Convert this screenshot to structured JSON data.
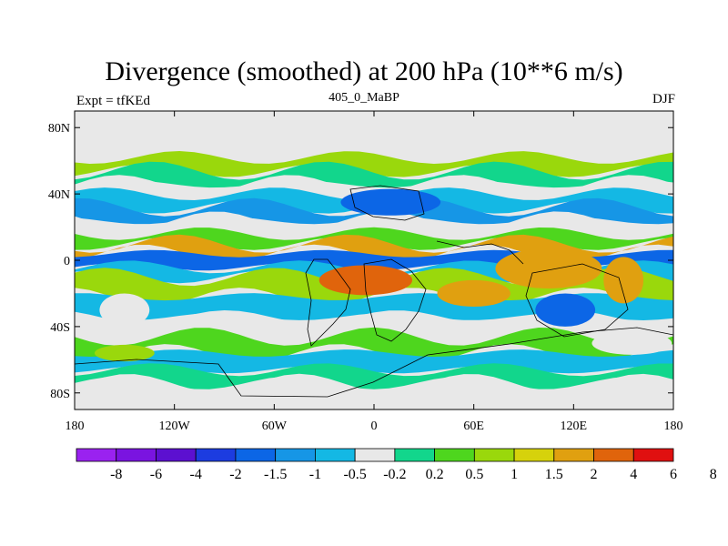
{
  "title": "Divergence (smoothed) at 200 hPa (10**6 m/s)",
  "subtitle": "405_0_MaBP",
  "left_label": "Expt = tfKEd",
  "right_label": "DJF",
  "colors": {
    "background": "#ffffff",
    "map_fill_neutral": "#e8e8e8",
    "coastline": "#000000",
    "levels": [
      "#9a22f0",
      "#7a14e0",
      "#5c10d0",
      "#1c3ce0",
      "#0c66e6",
      "#1696e6",
      "#14b8e4",
      "#e8e8e8",
      "#12d68c",
      "#4ed61e",
      "#9ad80c",
      "#d6d20c",
      "#e0a010",
      "#e0640c",
      "#e01010"
    ]
  },
  "chart_data": {
    "type": "heatmap",
    "title": "Divergence (smoothed) at 200 hPa (10**6 m/s)",
    "subtitle": "405_0_MaBP",
    "xlabel": "",
    "ylabel": "",
    "x_ticks": [
      "180",
      "120W",
      "60W",
      "0",
      "60E",
      "120E",
      "180"
    ],
    "x_tick_values": [
      -180,
      -120,
      -60,
      0,
      60,
      120,
      180
    ],
    "y_ticks": [
      "80N",
      "40N",
      "0",
      "40S",
      "80S"
    ],
    "y_tick_values": [
      80,
      40,
      0,
      -40,
      -80
    ],
    "xlim": [
      -180,
      180
    ],
    "ylim": [
      -90,
      90
    ],
    "colorbar": {
      "labels": [
        "-8",
        "-6",
        "-4",
        "-2",
        "-1.5",
        "-1",
        "-0.5",
        "-0.2",
        "0.2",
        "0.5",
        "1",
        "1.5",
        "2",
        "4",
        "6",
        "8"
      ],
      "levels": [
        -8,
        -6,
        -4,
        -2,
        -1.5,
        -1,
        -0.5,
        -0.2,
        0.2,
        0.5,
        1,
        1.5,
        2,
        4,
        6,
        8
      ]
    },
    "bands": [
      {
        "lat_top": 90,
        "lat_bottom": 62,
        "level_index": 7
      },
      {
        "lat_top": 62,
        "lat_bottom": 54,
        "level_index": 10
      },
      {
        "lat_top": 54,
        "lat_bottom": 46,
        "level_index": 8
      },
      {
        "lat_top": 46,
        "lat_bottom": 40,
        "level_index": 7
      },
      {
        "lat_top": 40,
        "lat_bottom": 32,
        "level_index": 6
      },
      {
        "lat_top": 32,
        "lat_bottom": 24,
        "level_index": 5
      },
      {
        "lat_top": 24,
        "lat_bottom": 16,
        "level_index": 7
      },
      {
        "lat_top": 16,
        "lat_bottom": 10,
        "level_index": 9
      },
      {
        "lat_top": 10,
        "lat_bottom": 4,
        "level_index": 12
      },
      {
        "lat_top": 4,
        "lat_bottom": -4,
        "level_index": 4
      },
      {
        "lat_top": -4,
        "lat_bottom": -10,
        "level_index": 6
      },
      {
        "lat_top": -10,
        "lat_bottom": -22,
        "level_index": 10
      },
      {
        "lat_top": -22,
        "lat_bottom": -34,
        "level_index": 6
      },
      {
        "lat_top": -34,
        "lat_bottom": -46,
        "level_index": 7
      },
      {
        "lat_top": -46,
        "lat_bottom": -56,
        "level_index": 9
      },
      {
        "lat_top": -56,
        "lat_bottom": -66,
        "level_index": 6
      },
      {
        "lat_top": -66,
        "lat_bottom": -74,
        "level_index": 8
      },
      {
        "lat_top": -74,
        "lat_bottom": -90,
        "level_index": 7
      }
    ],
    "blobs": [
      {
        "lon": -5,
        "lat": -12,
        "rlon": 28,
        "rlat": 9,
        "level_index": 13
      },
      {
        "lon": 105,
        "lat": -5,
        "rlon": 32,
        "rlat": 12,
        "level_index": 12
      },
      {
        "lon": 150,
        "lat": -12,
        "rlon": 12,
        "rlat": 14,
        "level_index": 12
      },
      {
        "lon": 115,
        "lat": -30,
        "rlon": 18,
        "rlat": 10,
        "level_index": 4
      },
      {
        "lon": 10,
        "lat": 35,
        "rlon": 30,
        "rlat": 8,
        "level_index": 4
      },
      {
        "lon": -150,
        "lat": -30,
        "rlon": 15,
        "rlat": 10,
        "level_index": 7
      },
      {
        "lon": 60,
        "lat": -20,
        "rlon": 22,
        "rlat": 8,
        "level_index": 12
      },
      {
        "lon": -150,
        "lat": -56,
        "rlon": 18,
        "rlat": 5,
        "level_index": 10
      },
      {
        "lon": 155,
        "lat": -50,
        "rlon": 24,
        "rlat": 7,
        "level_index": 7
      }
    ]
  }
}
